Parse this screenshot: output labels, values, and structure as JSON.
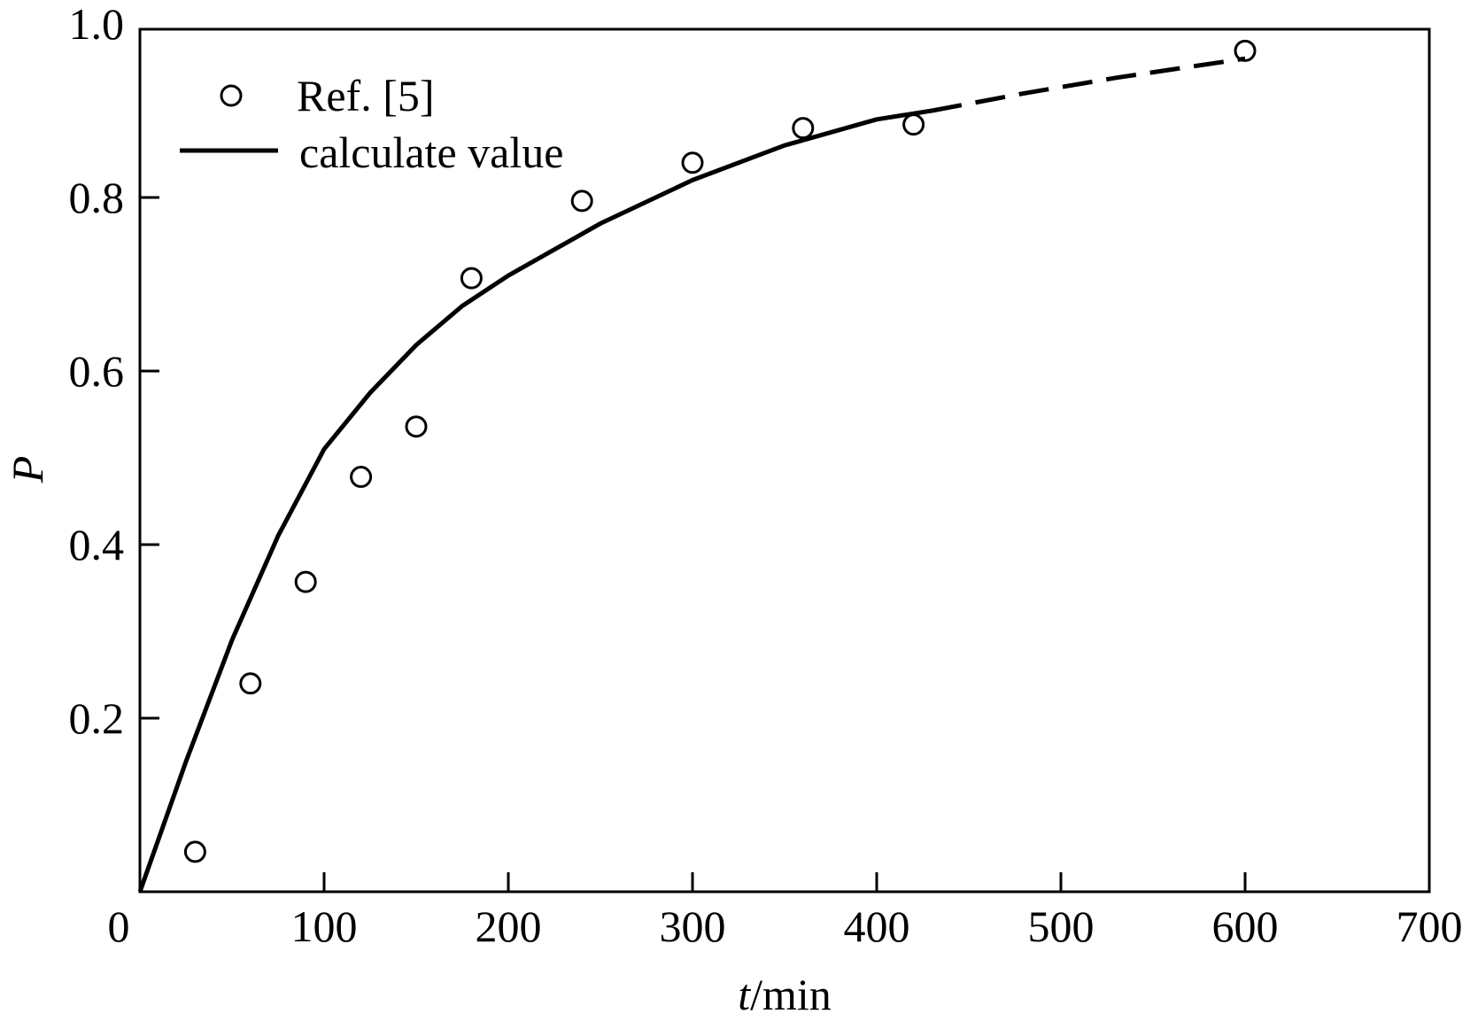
{
  "chart_data": {
    "type": "scatter+line",
    "title": "",
    "xlabel": {
      "italic": "t",
      "rest": "/min"
    },
    "ylabel": "P",
    "xlim": [
      0,
      700
    ],
    "ylim": [
      0,
      1.0
    ],
    "xticks": [
      "0",
      "100",
      "200",
      "300",
      "400",
      "500",
      "600",
      "700"
    ],
    "yticks": [
      "0.2",
      "0.4",
      "0.6",
      "0.8",
      "1.0"
    ],
    "grid": false,
    "legend_position": "top-left",
    "series": [
      {
        "name": "Ref. [5]",
        "kind": "scatter",
        "marker": "open-circle",
        "x": [
          30,
          60,
          90,
          120,
          150,
          180,
          240,
          300,
          360,
          420,
          600
        ],
        "y": [
          0.046,
          0.24,
          0.357,
          0.478,
          0.536,
          0.707,
          0.796,
          0.84,
          0.88,
          0.884,
          0.969
        ]
      },
      {
        "name": "calculate value",
        "kind": "line",
        "x": [
          0,
          25,
          50,
          75,
          100,
          125,
          150,
          175,
          200,
          250,
          300,
          350,
          400,
          430
        ],
        "y": [
          0,
          0.15,
          0.29,
          0.41,
          0.51,
          0.575,
          0.63,
          0.675,
          0.71,
          0.77,
          0.82,
          0.86,
          0.89,
          0.9
        ]
      },
      {
        "kind": "line-dashed",
        "x": [
          430,
          480,
          530,
          600
        ],
        "y": [
          0.9,
          0.92,
          0.938,
          0.96
        ]
      }
    ],
    "colors": {
      "ink": "#000000",
      "background": "#ffffff"
    }
  }
}
